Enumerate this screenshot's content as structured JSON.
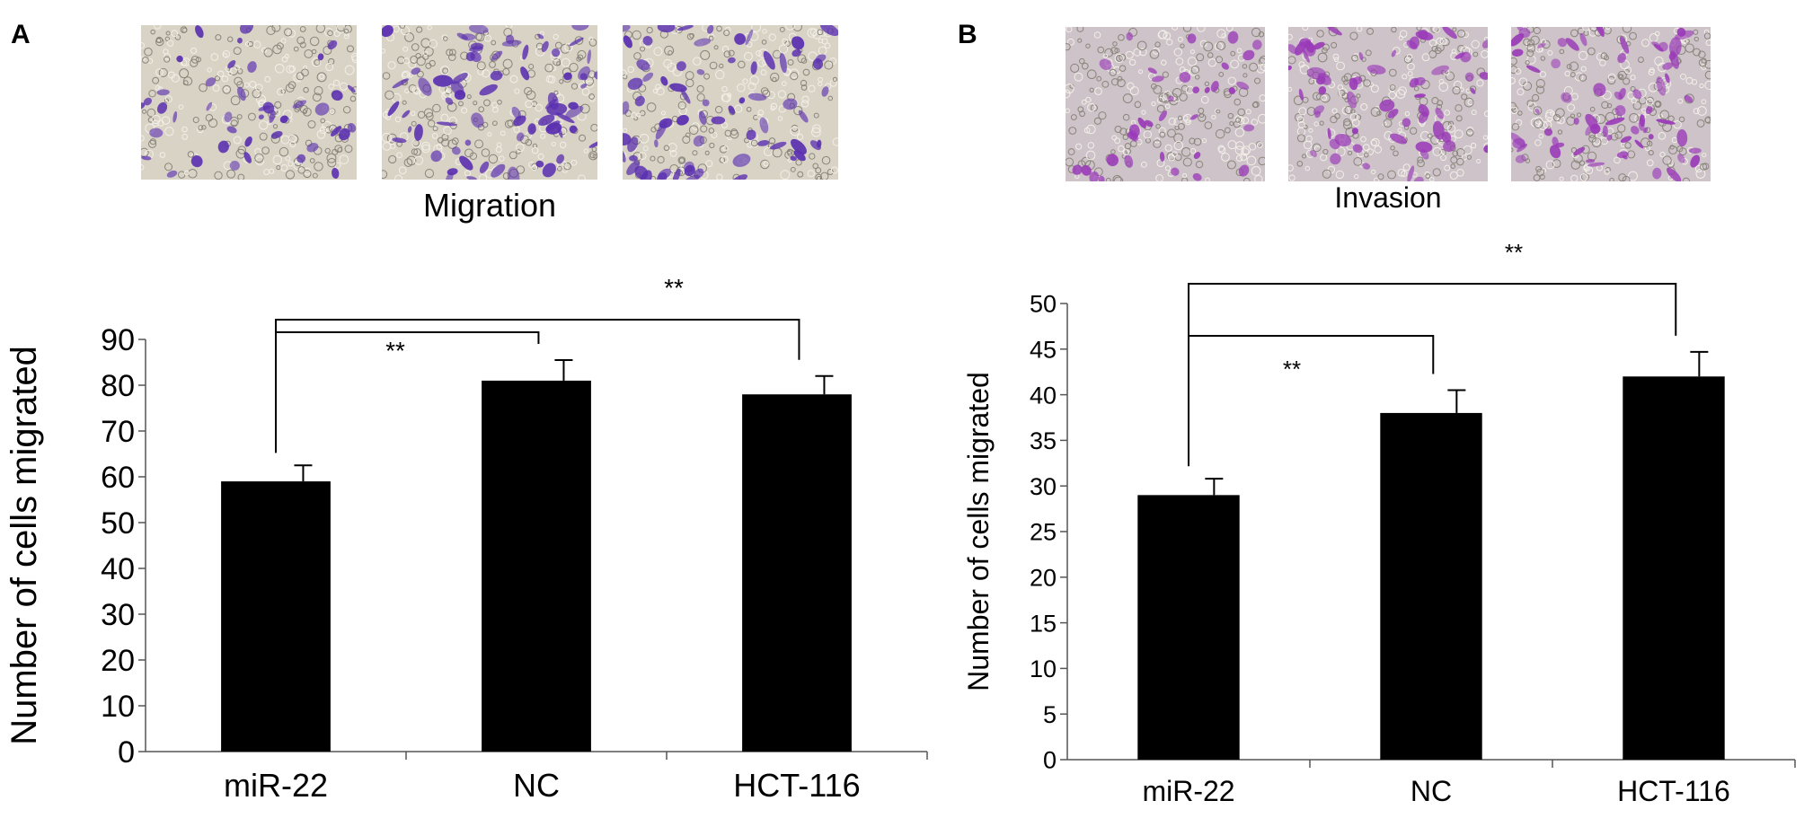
{
  "panels": {
    "a": {
      "letter": "A",
      "caption": "Migration",
      "micrographs": [
        "micrograph-migration-miR-22",
        "micrograph-migration-NC",
        "micrograph-migration-HCT-116"
      ],
      "stain_color": "#5a2fb0"
    },
    "b": {
      "letter": "B",
      "caption": "Invasion",
      "micrographs": [
        "micrograph-invasion-miR-22",
        "micrograph-invasion-NC",
        "micrograph-invasion-HCT-116"
      ],
      "stain_color": "#9a3ab8"
    }
  },
  "chart_data": [
    {
      "type": "bar",
      "categories": [
        "miR-22",
        "NC",
        "HCT-116"
      ],
      "values": [
        59,
        81,
        78
      ],
      "errors": [
        3.5,
        4.5,
        4
      ],
      "ylabel": "Number of cells migrated",
      "xlabel": "",
      "ylim": [
        0,
        90
      ],
      "yticks": [
        0,
        10,
        20,
        30,
        40,
        50,
        60,
        70,
        80,
        90
      ],
      "bar_color": "#000000",
      "grid": false,
      "annotations": [
        {
          "from": "miR-22",
          "to": "NC",
          "label": "**"
        },
        {
          "from": "miR-22",
          "to": "HCT-116",
          "label": "**"
        }
      ]
    },
    {
      "type": "bar",
      "categories": [
        "miR-22",
        "NC",
        "HCT-116"
      ],
      "values": [
        29,
        38,
        42
      ],
      "errors": [
        1.8,
        2.5,
        2.7
      ],
      "ylabel": "Number of cells migrated",
      "xlabel": "",
      "ylim": [
        0,
        50
      ],
      "yticks": [
        0,
        5,
        10,
        15,
        20,
        25,
        30,
        35,
        40,
        45,
        50
      ],
      "bar_color": "#000000",
      "grid": false,
      "annotations": [
        {
          "from": "miR-22",
          "to": "NC",
          "label": "**"
        },
        {
          "from": "miR-22",
          "to": "HCT-116",
          "label": "**"
        }
      ]
    }
  ]
}
